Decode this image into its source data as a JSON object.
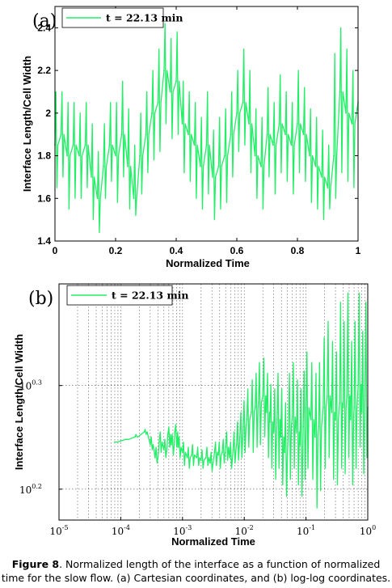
{
  "figure": {
    "caption_label": "Figure 8",
    "caption_text": ". Normalized length of the interface as a function of normalized time for the slow flow. (a) Cartesian coordinates, and (b) log-log coordinates."
  },
  "colors": {
    "series": "#22ee66",
    "axis": "#000000",
    "grid": "#555555"
  },
  "chart_data": [
    {
      "panel_label": "(a)",
      "type": "line",
      "title": "",
      "xlabel": "Normalized Time",
      "ylabel": "Interface Length/Cell Width",
      "xlim": [
        0,
        1
      ],
      "ylim": [
        1.4,
        2.5
      ],
      "xscale": "linear",
      "yscale": "linear",
      "grid": false,
      "legend_position": "top-left",
      "xticks": [
        0,
        0.2,
        0.4,
        0.6,
        0.8,
        1
      ],
      "xtick_labels": [
        "0",
        "0.2",
        "0.4",
        "0.6",
        "0.8",
        "1"
      ],
      "yticks": [
        1.4,
        1.6,
        1.8,
        2.0,
        2.2,
        2.4
      ],
      "ytick_labels": [
        "1.4",
        "1.6",
        "1.8",
        "2",
        "2.2",
        "2.4"
      ],
      "series": [
        {
          "name": "t = 22.13 min",
          "x": [
            0,
            0.02,
            0.04,
            0.06,
            0.08,
            0.1,
            0.12,
            0.14,
            0.16,
            0.18,
            0.2,
            0.22,
            0.24,
            0.26,
            0.28,
            0.3,
            0.32,
            0.34,
            0.36,
            0.38,
            0.4,
            0.42,
            0.44,
            0.46,
            0.48,
            0.5,
            0.52,
            0.54,
            0.56,
            0.58,
            0.6,
            0.62,
            0.64,
            0.66,
            0.68,
            0.7,
            0.72,
            0.74,
            0.76,
            0.78,
            0.8,
            0.82,
            0.84,
            0.86,
            0.88,
            0.9,
            0.92,
            0.94,
            0.96,
            0.98,
            1
          ],
          "y": [
            1.85,
            1.9,
            1.8,
            1.85,
            1.8,
            1.85,
            1.7,
            1.6,
            1.75,
            1.85,
            1.8,
            1.9,
            1.75,
            1.6,
            1.8,
            1.9,
            2.0,
            2.05,
            2.2,
            2.1,
            2.15,
            1.95,
            1.9,
            1.85,
            1.75,
            1.85,
            1.7,
            1.75,
            1.8,
            1.9,
            2.0,
            2.05,
            1.95,
            1.8,
            1.75,
            1.9,
            1.85,
            1.95,
            1.9,
            1.85,
            1.95,
            1.9,
            1.8,
            1.75,
            1.7,
            1.65,
            1.8,
            2.1,
            2.0,
            1.95,
            2.05
          ],
          "y_low": [
            1.65,
            1.7,
            1.55,
            1.6,
            1.6,
            1.65,
            1.5,
            1.44,
            1.6,
            1.68,
            1.58,
            1.7,
            1.55,
            1.52,
            1.62,
            1.72,
            1.78,
            1.82,
            1.95,
            1.88,
            1.9,
            1.72,
            1.68,
            1.6,
            1.55,
            1.62,
            1.5,
            1.55,
            1.58,
            1.7,
            1.82,
            1.85,
            1.72,
            1.6,
            1.55,
            1.7,
            1.62,
            1.72,
            1.68,
            1.62,
            1.72,
            1.68,
            1.58,
            1.55,
            1.5,
            1.55,
            1.6,
            1.72,
            1.68,
            1.65,
            1.72
          ],
          "y_high": [
            2.1,
            2.1,
            2.05,
            2.05,
            2.0,
            2.05,
            1.95,
            1.82,
            1.95,
            2.05,
            2.05,
            2.15,
            2.02,
            1.85,
            2.0,
            2.1,
            2.2,
            2.3,
            2.42,
            2.35,
            2.38,
            2.15,
            2.1,
            2.05,
            1.98,
            2.1,
            1.92,
            1.98,
            2.02,
            2.1,
            2.2,
            2.3,
            2.2,
            2.02,
            1.98,
            2.12,
            2.05,
            2.18,
            2.1,
            2.05,
            2.2,
            2.12,
            2.02,
            1.98,
            1.92,
            1.85,
            2.28,
            2.4,
            2.3,
            2.2,
            2.35
          ]
        }
      ]
    },
    {
      "panel_label": "(b)",
      "type": "line",
      "title": "",
      "xlabel": "Normalized Time",
      "ylabel": "Interface Length/Cell Width",
      "xlim": [
        1e-05,
        1
      ],
      "ylim": [
        1.48,
        2.5
      ],
      "xscale": "log",
      "yscale": "log",
      "grid": true,
      "legend_position": "top-left",
      "xticks": [
        1e-05,
        0.0001,
        0.001,
        0.01,
        0.1,
        1
      ],
      "xtick_labels": [
        {
          "base": "10",
          "exp": "-5"
        },
        {
          "base": "10",
          "exp": "-4"
        },
        {
          "base": "10",
          "exp": "-3"
        },
        {
          "base": "10",
          "exp": "-2"
        },
        {
          "base": "10",
          "exp": "-1"
        },
        {
          "base": "10",
          "exp": "0"
        }
      ],
      "yticks": [
        1.585,
        1.995
      ],
      "ytick_labels": [
        {
          "base": "10",
          "exp": "0.2"
        },
        {
          "base": "10",
          "exp": "0.3"
        }
      ],
      "series": [
        {
          "name": "t = 22.13 min",
          "x": [
            8e-05,
            0.00012,
            0.00017,
            0.00024,
            0.0003,
            0.00036,
            0.00042,
            0.0005,
            0.00058,
            0.00066,
            0.00075,
            0.00085,
            0.001,
            0.0012,
            0.0014,
            0.0017,
            0.002,
            0.0024,
            0.0028,
            0.0033,
            0.0038,
            0.0044,
            0.005,
            0.0058,
            0.0066,
            0.0075,
            0.0085,
            0.0096,
            0.011,
            0.013,
            0.015,
            0.017,
            0.02,
            0.023,
            0.026,
            0.03,
            0.034,
            0.039,
            0.045,
            0.052,
            0.06,
            0.07,
            0.08,
            0.09,
            0.1,
            0.12,
            0.14,
            0.16,
            0.19,
            0.22,
            0.26,
            0.3,
            0.35,
            0.4,
            0.46,
            0.53,
            0.6,
            0.7,
            0.8,
            0.9,
            1
          ],
          "y": [
            1.76,
            1.77,
            1.78,
            1.8,
            1.75,
            1.7,
            1.76,
            1.73,
            1.79,
            1.75,
            1.8,
            1.74,
            1.72,
            1.7,
            1.71,
            1.7,
            1.69,
            1.7,
            1.68,
            1.72,
            1.71,
            1.72,
            1.74,
            1.7,
            1.73,
            1.75,
            1.78,
            1.82,
            1.85,
            1.88,
            1.9,
            1.92,
            1.95,
            1.88,
            1.84,
            1.8,
            1.85,
            1.78,
            1.72,
            1.82,
            1.86,
            1.8,
            1.75,
            1.82,
            1.9,
            1.85,
            1.78,
            1.82,
            1.9,
            1.95,
            1.88,
            1.85,
            1.92,
            1.9,
            1.95,
            1.85,
            1.9,
            2.0,
            1.88,
            1.95,
            1.9
          ],
          "y_low": [
            1.76,
            1.77,
            1.78,
            1.79,
            1.73,
            1.68,
            1.72,
            1.7,
            1.74,
            1.71,
            1.74,
            1.7,
            1.67,
            1.66,
            1.67,
            1.67,
            1.66,
            1.67,
            1.65,
            1.67,
            1.66,
            1.68,
            1.69,
            1.66,
            1.68,
            1.69,
            1.7,
            1.72,
            1.74,
            1.72,
            1.74,
            1.75,
            1.78,
            1.7,
            1.66,
            1.62,
            1.66,
            1.6,
            1.56,
            1.62,
            1.66,
            1.6,
            1.56,
            1.62,
            1.66,
            1.62,
            1.52,
            1.58,
            1.66,
            1.7,
            1.62,
            1.6,
            1.66,
            1.64,
            1.7,
            1.6,
            1.66,
            1.74,
            1.64,
            1.7,
            1.66
          ],
          "y_high": [
            1.76,
            1.77,
            1.79,
            1.81,
            1.78,
            1.74,
            1.8,
            1.77,
            1.82,
            1.79,
            1.83,
            1.78,
            1.76,
            1.74,
            1.75,
            1.74,
            1.73,
            1.74,
            1.72,
            1.76,
            1.76,
            1.77,
            1.8,
            1.76,
            1.8,
            1.84,
            1.88,
            1.93,
            1.98,
            2.02,
            2.05,
            2.1,
            2.12,
            2.05,
            2.0,
            1.98,
            2.05,
            1.98,
            1.92,
            2.05,
            2.1,
            2.02,
            1.98,
            2.06,
            2.15,
            2.1,
            2.05,
            2.1,
            2.22,
            2.3,
            2.2,
            2.15,
            2.4,
            2.3,
            2.45,
            2.2,
            2.3,
            2.45,
            2.25,
            2.4,
            2.35
          ]
        }
      ]
    }
  ]
}
